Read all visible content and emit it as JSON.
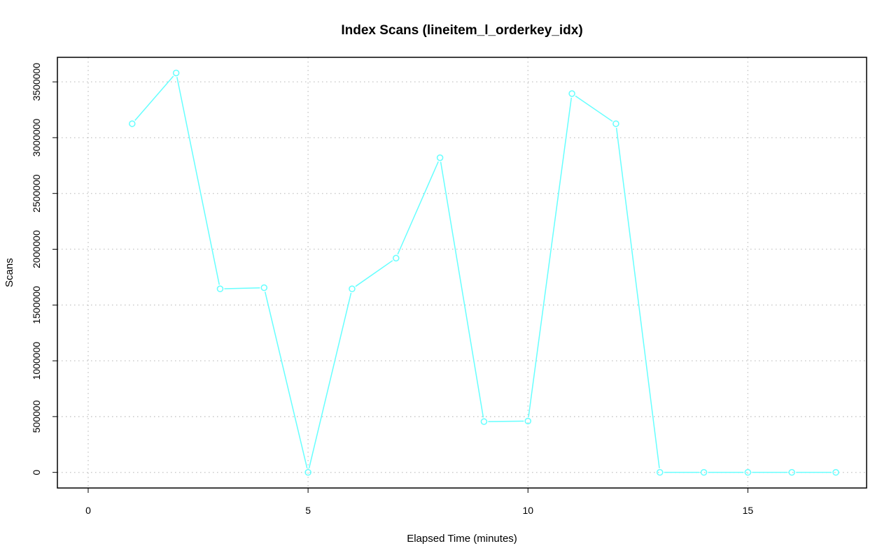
{
  "chart_data": {
    "type": "line",
    "title": "Index Scans (lineitem_l_orderkey_idx)",
    "xlabel": "Elapsed Time (minutes)",
    "ylabel": "Scans",
    "xlim": [
      -0.7,
      17.7
    ],
    "ylim": [
      -140000,
      3720000
    ],
    "x_ticks": [
      0,
      5,
      10,
      15
    ],
    "x_tick_labels": [
      "0",
      "5",
      "10",
      "15"
    ],
    "y_ticks": [
      0,
      500000,
      1000000,
      1500000,
      2000000,
      2500000,
      3000000,
      3500000
    ],
    "y_tick_labels": [
      "0",
      "500000",
      "1000000",
      "1500000",
      "2000000",
      "2500000",
      "3000000",
      "3500000"
    ],
    "grid": true,
    "color": "#66FFFF",
    "series": [
      {
        "x": [
          1,
          2,
          3,
          4,
          5,
          6,
          7,
          8,
          9,
          10,
          11,
          12,
          13,
          14,
          15,
          16,
          17
        ],
        "values": [
          3125000,
          3580000,
          1645000,
          1655000,
          0,
          1645000,
          1920000,
          2820000,
          455000,
          460000,
          3395000,
          3125000,
          0,
          0,
          0,
          0,
          0
        ]
      }
    ]
  }
}
